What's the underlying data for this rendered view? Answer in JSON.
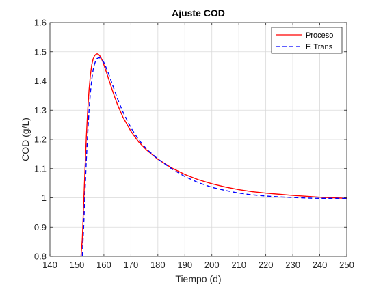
{
  "chart_data": {
    "type": "line",
    "title": "Ajuste COD",
    "xlabel": "Tiempo (d)",
    "ylabel": "COD (g/L)",
    "xlim": [
      140,
      250
    ],
    "ylim": [
      0.8,
      1.6
    ],
    "xticks": [
      140,
      150,
      160,
      170,
      180,
      190,
      200,
      210,
      220,
      230,
      240,
      250
    ],
    "yticks": [
      0.8,
      0.9,
      1,
      1.1,
      1.2,
      1.3,
      1.4,
      1.5,
      1.6
    ],
    "grid": true,
    "legend_position": "top-right",
    "series": [
      {
        "name": "Proceso",
        "color": "#ff0000",
        "style": "solid",
        "x": [
          151.5,
          152,
          152.5,
          153,
          153.5,
          154,
          154.5,
          155,
          155.5,
          156,
          156.5,
          157,
          157.5,
          158,
          158.5,
          159,
          159.5,
          160,
          161,
          162,
          163,
          164,
          165,
          167,
          170,
          173,
          176,
          180,
          185,
          190,
          195,
          200,
          205,
          210,
          215,
          220,
          225,
          230,
          235,
          240,
          245,
          250
        ],
        "y": [
          0.8,
          0.86,
          0.98,
          1.1,
          1.21,
          1.3,
          1.37,
          1.42,
          1.455,
          1.475,
          1.486,
          1.491,
          1.493,
          1.491,
          1.486,
          1.478,
          1.468,
          1.455,
          1.428,
          1.4,
          1.372,
          1.345,
          1.32,
          1.277,
          1.228,
          1.19,
          1.162,
          1.132,
          1.103,
          1.08,
          1.062,
          1.048,
          1.037,
          1.028,
          1.021,
          1.016,
          1.012,
          1.008,
          1.005,
          1.002,
          1.0,
          0.998
        ]
      },
      {
        "name": "F. Trans",
        "color": "#0000ff",
        "style": "dashed",
        "x": [
          152,
          152.5,
          153,
          153.5,
          154,
          154.5,
          155,
          155.5,
          156,
          156.5,
          157,
          157.5,
          158,
          158.5,
          159,
          159.5,
          160,
          161,
          162,
          163,
          164,
          165,
          167,
          170,
          173,
          176,
          180,
          185,
          190,
          195,
          200,
          205,
          210,
          215,
          220,
          225,
          230,
          235,
          240,
          245,
          250
        ],
        "y": [
          0.8,
          0.9,
          1.02,
          1.13,
          1.22,
          1.3,
          1.36,
          1.405,
          1.437,
          1.457,
          1.47,
          1.477,
          1.479,
          1.479,
          1.476,
          1.47,
          1.463,
          1.442,
          1.418,
          1.392,
          1.366,
          1.34,
          1.295,
          1.24,
          1.197,
          1.165,
          1.133,
          1.1,
          1.073,
          1.052,
          1.036,
          1.025,
          1.016,
          1.01,
          1.006,
          1.003,
          1.001,
          0.999,
          0.998,
          0.998,
          0.998
        ]
      }
    ]
  }
}
